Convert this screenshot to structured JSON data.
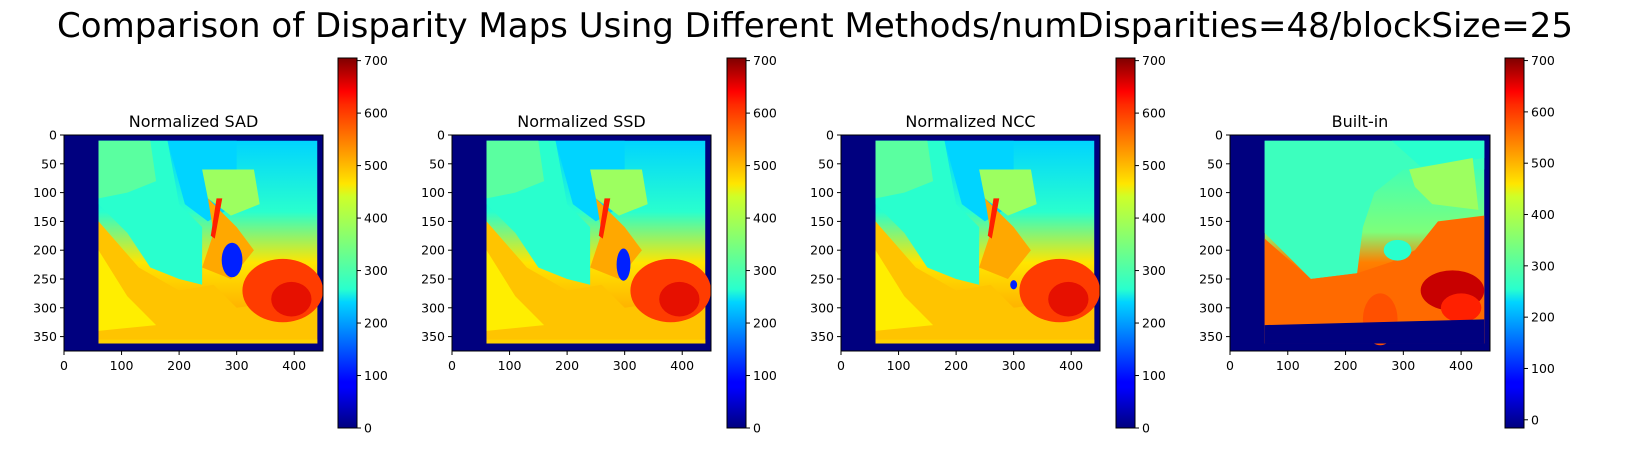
{
  "figure": {
    "suptitle": "Comparison of Disparity Maps Using Different Methods/numDisparities=48/blockSize=25"
  },
  "chart_data": [
    {
      "type": "heatmap",
      "title": "Normalized SAD",
      "colormap": "jet",
      "xlim": [
        0,
        450
      ],
      "ylim": [
        375,
        0
      ],
      "xticks": [
        0,
        100,
        200,
        300,
        400
      ],
      "yticks": [
        0,
        50,
        100,
        150,
        200,
        250,
        300,
        350
      ],
      "colorbar": {
        "range": [
          0,
          705
        ],
        "ticks": [
          0,
          100,
          200,
          300,
          400,
          500,
          600,
          700
        ]
      }
    },
    {
      "type": "heatmap",
      "title": "Normalized SSD",
      "colormap": "jet",
      "xlim": [
        0,
        450
      ],
      "ylim": [
        375,
        0
      ],
      "xticks": [
        0,
        100,
        200,
        300,
        400
      ],
      "yticks": [
        0,
        50,
        100,
        150,
        200,
        250,
        300,
        350
      ],
      "colorbar": {
        "range": [
          0,
          705
        ],
        "ticks": [
          0,
          100,
          200,
          300,
          400,
          500,
          600,
          700
        ]
      }
    },
    {
      "type": "heatmap",
      "title": "Normalized NCC",
      "colormap": "jet",
      "xlim": [
        0,
        450
      ],
      "ylim": [
        375,
        0
      ],
      "xticks": [
        0,
        100,
        200,
        300,
        400
      ],
      "yticks": [
        0,
        50,
        100,
        150,
        200,
        250,
        300,
        350
      ],
      "colorbar": {
        "range": [
          0,
          705
        ],
        "ticks": [
          0,
          100,
          200,
          300,
          400,
          500,
          600,
          700
        ]
      }
    },
    {
      "type": "heatmap",
      "title": "Built-in",
      "colormap": "jet",
      "xlim": [
        0,
        450
      ],
      "ylim": [
        375,
        0
      ],
      "xticks": [
        0,
        100,
        200,
        300,
        400
      ],
      "yticks": [
        0,
        50,
        100,
        150,
        200,
        250,
        300,
        350
      ],
      "colorbar": {
        "range": [
          -16,
          705
        ],
        "ticks": [
          0,
          100,
          200,
          300,
          400,
          500,
          600,
          700
        ]
      }
    }
  ]
}
